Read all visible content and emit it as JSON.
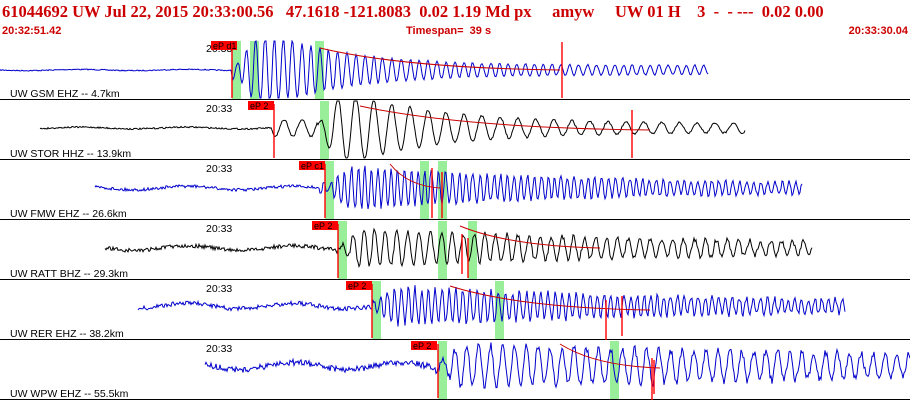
{
  "header": {
    "title": "61044692 UW Jul 22, 2015 20:33:00.56   47.1618 -121.8083  0.02 1.19 Md px     amyw     UW 01 H    3  -  - ---  0.02 0.00",
    "start_time": "20:32:51.42",
    "timespan": "Timespan=  39 s",
    "end_time": "20:33:30.04"
  },
  "colors": {
    "trace_blue": "#0000cc",
    "trace_black": "#000000",
    "pick_red": "#ff0000",
    "window_green": "#99ee99",
    "coda_red": "#cc0000",
    "header_red": "#cc0000"
  },
  "traces": [
    {
      "label": "UW GSM EHZ -- 4.7km",
      "time_label": "20:33",
      "pick_label": "eP d1",
      "color": "#0000cc"
    },
    {
      "label": "UW STOR HHZ -- 13.9km",
      "time_label": "20:33",
      "pick_label": "eP 2",
      "color": "#000000"
    },
    {
      "label": "UW FMW EHZ -- 26.6km",
      "time_label": "20:33",
      "pick_label": "eP c1",
      "color": "#0000cc"
    },
    {
      "label": "UW RATT BHZ -- 29.3km",
      "time_label": "20:33",
      "pick_label": "eP 2",
      "color": "#000000"
    },
    {
      "label": "UW RER EHZ -- 38.2km",
      "time_label": "20:33",
      "pick_label": "eP 2",
      "color": "#0000cc"
    },
    {
      "label": "UW WPW EHZ -- 55.5km",
      "time_label": "20:33",
      "pick_label": "eP 2",
      "color": "#0000cc"
    }
  ]
}
